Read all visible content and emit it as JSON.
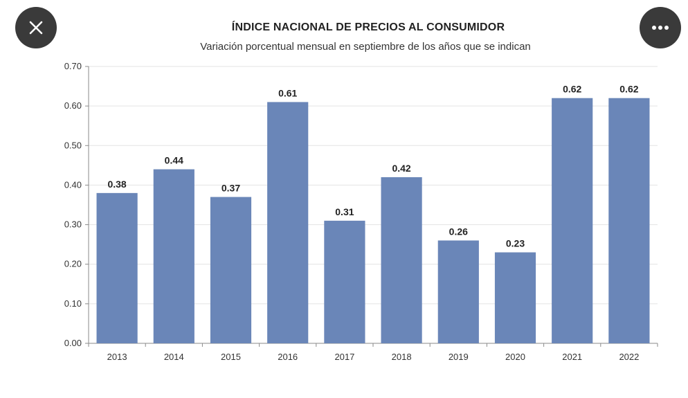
{
  "controls": {
    "close_icon": "close-icon",
    "more_icon": "more-icon"
  },
  "chart_data": {
    "type": "bar",
    "title": "ÍNDICE NACIONAL DE PRECIOS AL CONSUMIDOR",
    "subtitle": "Variación porcentual mensual en septiembre de los años que se indican",
    "categories": [
      "2013",
      "2014",
      "2015",
      "2016",
      "2017",
      "2018",
      "2019",
      "2020",
      "2021",
      "2022"
    ],
    "values": [
      0.38,
      0.44,
      0.37,
      0.61,
      0.31,
      0.42,
      0.26,
      0.23,
      0.62,
      0.62
    ],
    "data_labels": [
      "0.38",
      "0.44",
      "0.37",
      "0.61",
      "0.31",
      "0.42",
      "0.26",
      "0.23",
      "0.62",
      "0.62"
    ],
    "ylim": [
      0,
      0.7
    ],
    "yticks": [
      "0.00",
      "0.10",
      "0.20",
      "0.30",
      "0.40",
      "0.50",
      "0.60",
      "0.70"
    ],
    "grid": true,
    "bar_color": "#6a86b8",
    "xlabel": "",
    "ylabel": ""
  }
}
